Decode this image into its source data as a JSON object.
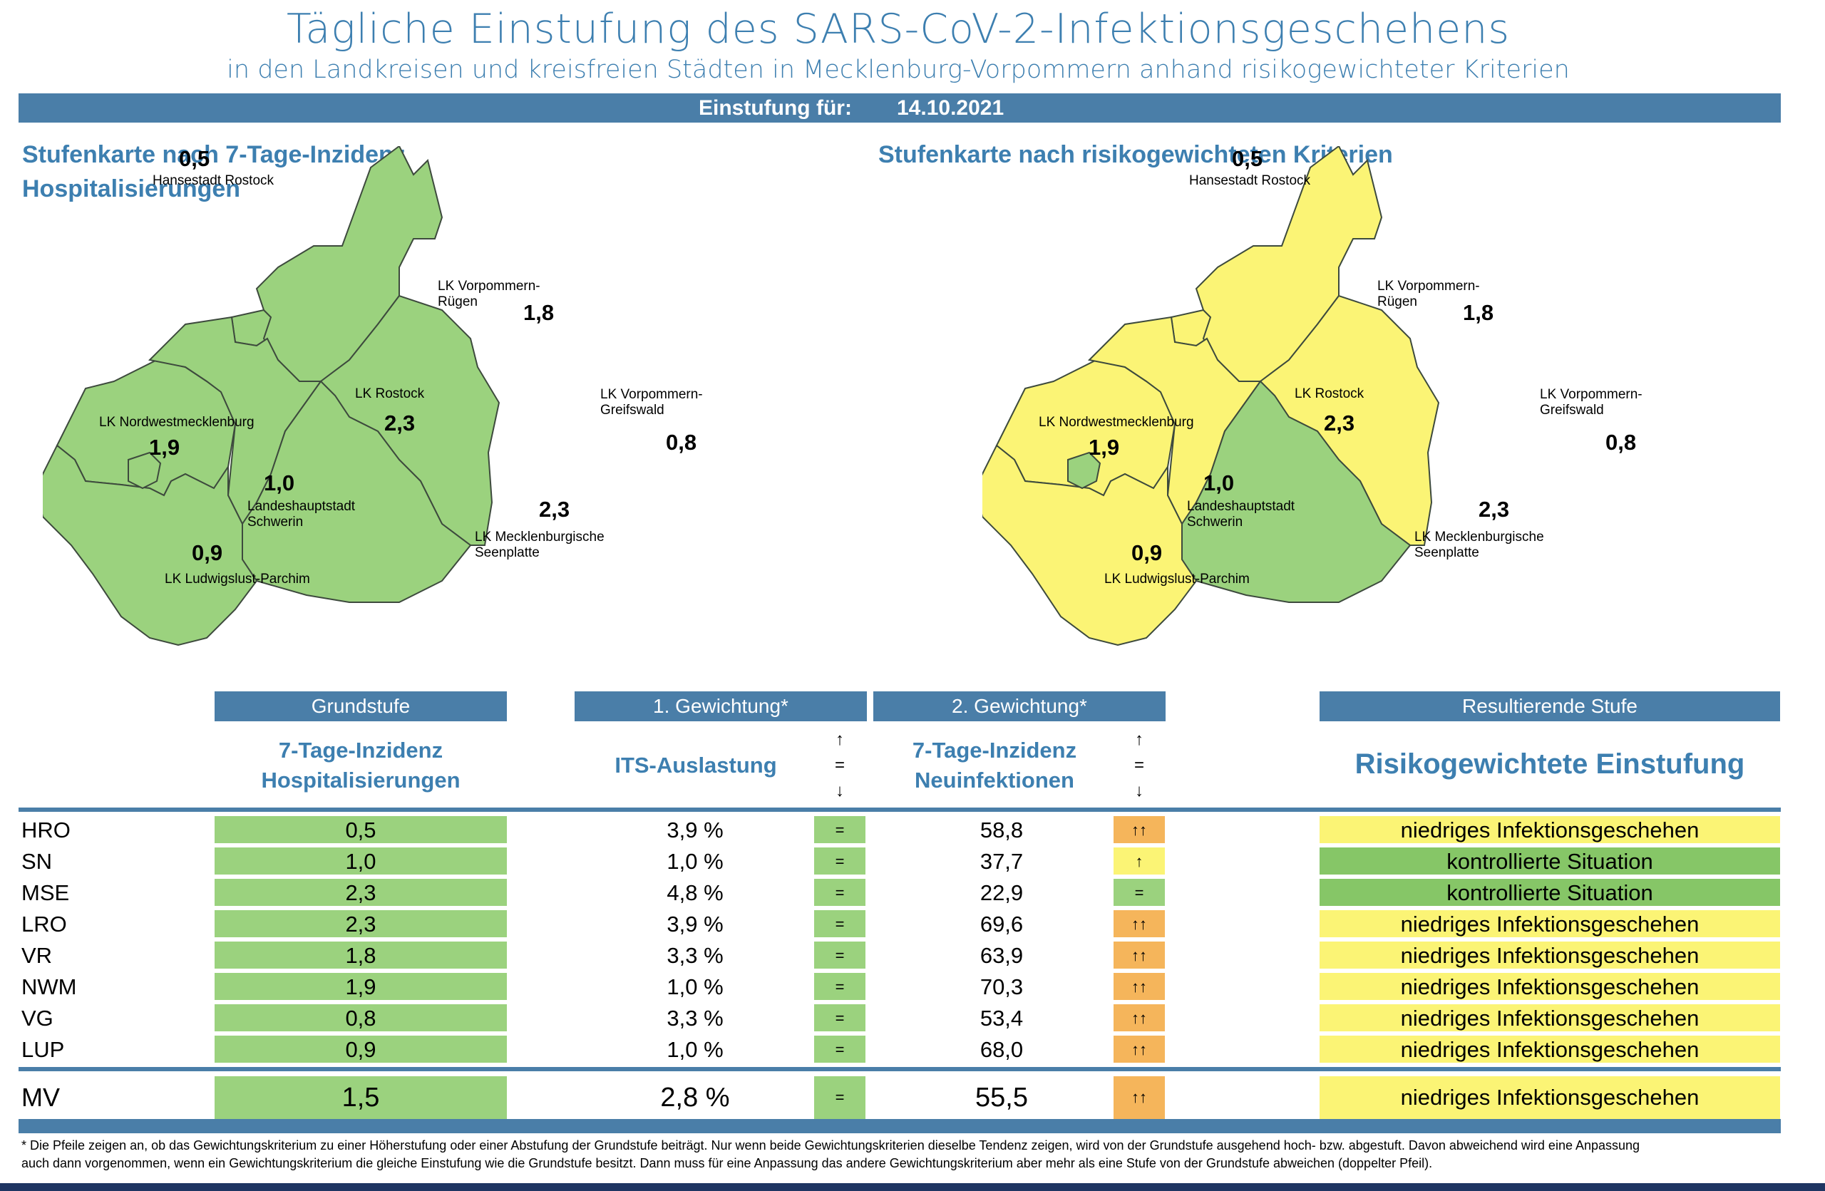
{
  "title": "Tägliche Einstufung des SARS-CoV-2-Infektionsgeschehens",
  "subtitle": "in den Landkreisen und kreisfreien Städten in Mecklenburg-Vorpommern anhand risikogewichteter Kriterien",
  "date_label": "Einstufung für:",
  "date_value": "14.10.2021",
  "map_left_title_line1": "Stufenkarte nach 7-Tage-Inzidenz",
  "map_left_title_line2": "Hospitalisierungen",
  "map_right_title": "Stufenkarte nach risikogewichteten Kriterien",
  "regions": {
    "hro": {
      "name": "Hansestadt Rostock",
      "value": "0,5"
    },
    "vr": {
      "name_line1": "LK Vorpommern-",
      "name_line2": "Rügen",
      "value": "1,8"
    },
    "lro": {
      "name": "LK Rostock",
      "value": "2,3"
    },
    "vg": {
      "name_line1": "LK Vorpommern-",
      "name_line2": "Greifswald",
      "value": "0,8"
    },
    "nwm": {
      "name": "LK Nordwestmecklenburg",
      "value": "1,9"
    },
    "sn": {
      "name_line1": "Landeshauptstadt",
      "name_line2": "Schwerin",
      "value": "1,0"
    },
    "mse": {
      "name_line1": "LK Mecklenburgische",
      "name_line2": "Seenplatte",
      "value": "2,3"
    },
    "lup": {
      "name": "LK Ludwigslust-Parchim",
      "value": "0,9"
    }
  },
  "table": {
    "headers": {
      "grundstufe": "Grundstufe",
      "gew1": "1. Gewichtung*",
      "gew2": "2. Gewichtung*",
      "result": "Resultierende Stufe"
    },
    "subheaders": {
      "grund_line1": "7-Tage-Inzidenz",
      "grund_line2": "Hospitalisierungen",
      "gew1": "ITS-Auslastung",
      "gew2_line1": "7-Tage-Inzidenz",
      "gew2_line2": "Neuinfektionen",
      "result": "Risikogewichtete Einstufung",
      "arrow_up": "↑",
      "arrow_eq": "=",
      "arrow_down": "↓"
    },
    "rows": [
      {
        "code": "HRO",
        "grund": "0,5",
        "its": "3,9 %",
        "its_trend": "=",
        "inz": "58,8",
        "inz_trend": "↑↑",
        "result": "niedriges Infektionsgeschehen"
      },
      {
        "code": "SN",
        "grund": "1,0",
        "its": "1,0 %",
        "its_trend": "=",
        "inz": "37,7",
        "inz_trend": "↑",
        "result": "kontrollierte Situation"
      },
      {
        "code": "MSE",
        "grund": "2,3",
        "its": "4,8 %",
        "its_trend": "=",
        "inz": "22,9",
        "inz_trend": "=",
        "result": "kontrollierte Situation"
      },
      {
        "code": "LRO",
        "grund": "2,3",
        "its": "3,9 %",
        "its_trend": "=",
        "inz": "69,6",
        "inz_trend": "↑↑",
        "result": "niedriges Infektionsgeschehen"
      },
      {
        "code": "VR",
        "grund": "1,8",
        "its": "3,3 %",
        "its_trend": "=",
        "inz": "63,9",
        "inz_trend": "↑↑",
        "result": "niedriges Infektionsgeschehen"
      },
      {
        "code": "NWM",
        "grund": "1,9",
        "its": "1,0 %",
        "its_trend": "=",
        "inz": "70,3",
        "inz_trend": "↑↑",
        "result": "niedriges Infektionsgeschehen"
      },
      {
        "code": "VG",
        "grund": "0,8",
        "its": "3,3 %",
        "its_trend": "=",
        "inz": "53,4",
        "inz_trend": "↑↑",
        "result": "niedriges Infektionsgeschehen"
      },
      {
        "code": "LUP",
        "grund": "0,9",
        "its": "1,0 %",
        "its_trend": "=",
        "inz": "68,0",
        "inz_trend": "↑↑",
        "result": "niedriges Infektionsgeschehen"
      }
    ],
    "total": {
      "code": "MV",
      "grund": "1,5",
      "its": "2,8 %",
      "its_trend": "=",
      "inz": "55,5",
      "inz_trend": "↑↑",
      "result": "niedriges Infektionsgeschehen"
    }
  },
  "footnote_line1": "* Die Pfeile zeigen an, ob das Gewichtungskriterium zu einer Höherstufung oder einer Abstufung der Grundstufe beiträgt. Nur wenn beide Gewichtungskriterien dieselbe Tendenz zeigen, wird von der Grundstufe ausgehend hoch- bzw. abgestuft.  Davon abweichend wird eine Anpassung",
  "footnote_line2": "auch dann vorgenommen, wenn ein Gewichtungskriterium die gleiche Einstufung wie die Grundstufe besitzt. Dann muss für eine Anpassung das andere Gewichtungskriterium aber mehr als eine Stufe von der Grundstufe abweichen (doppelter Pfeil).",
  "colors": {
    "accent": "#4a7ea8",
    "title_blue": "#3d7fb0",
    "green": "#9bd27e",
    "yellow": "#fbf475",
    "orange": "#f5b55b"
  }
}
